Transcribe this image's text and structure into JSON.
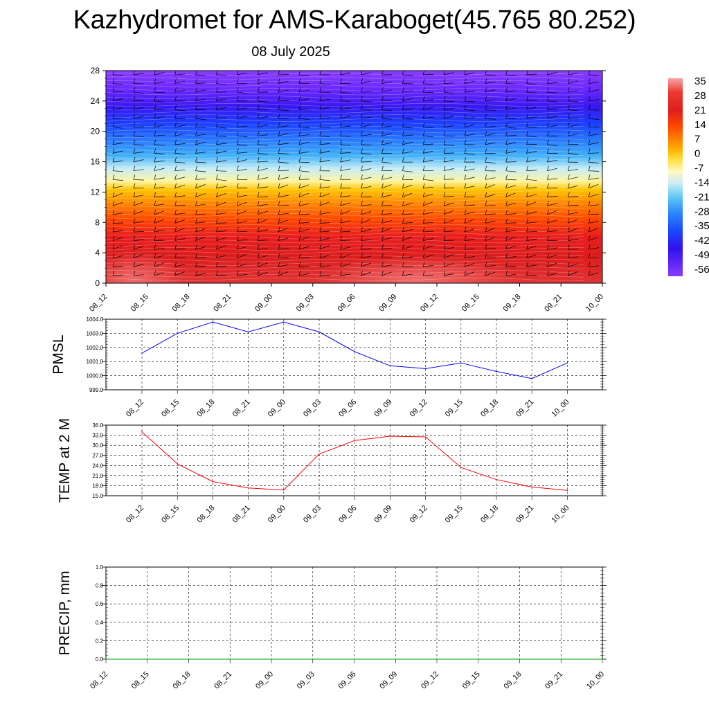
{
  "title": "Kazhydromet for AMS-Karaboget(45.765 80.252)",
  "date": "08 July 2025",
  "chart_data": [
    {
      "type": "heatmap",
      "y_ticks": [
        "0",
        "4",
        "8",
        "12",
        "16",
        "20",
        "24",
        "28"
      ],
      "ylim": [
        0,
        28
      ],
      "x_ticks": [
        "08_12",
        "08_15",
        "08_18",
        "08_21",
        "09_00",
        "09_03",
        "09_06",
        "09_09",
        "09_12",
        "09_15",
        "09_18",
        "09_21",
        "10_00"
      ],
      "colorbar": {
        "labels": [
          "35",
          "28",
          "21",
          "14",
          "7",
          "0",
          "-7",
          "-14",
          "-21",
          "-28",
          "-35",
          "-42",
          "-49",
          "-56"
        ],
        "colors": [
          "#f4a0a0",
          "#ee3c32",
          "#dc1e1e",
          "#ff4400",
          "#ff9a00",
          "#ffd000",
          "#fff59a",
          "#dff2f4",
          "#60ccf4",
          "#2090ff",
          "#1c46ff",
          "#3010ee",
          "#6428ff",
          "#8a3cff"
        ]
      },
      "wind_barbs": true
    },
    {
      "type": "line",
      "ylabel": "PMSL",
      "y_ticks": [
        "999.0",
        "1000.0",
        "1001.0",
        "1002.0",
        "1003.0",
        "1004.0"
      ],
      "ylim": [
        999,
        1004
      ],
      "x": [
        "08_12",
        "08_15",
        "08_18",
        "08_21",
        "09_00",
        "09_03",
        "09_06",
        "09_09",
        "09_12",
        "09_15",
        "09_18",
        "09_21",
        "10_00"
      ],
      "series": [
        {
          "values": [
            1001.6,
            1003.0,
            1003.8,
            1003.1,
            1003.8,
            1003.1,
            1001.7,
            1000.7,
            1000.5,
            1000.9,
            1000.3,
            999.8,
            1000.9
          ],
          "color": "#0000ff"
        }
      ],
      "grid": true
    },
    {
      "type": "line",
      "ylabel": "TEMP at 2 M",
      "y_ticks": [
        "15.0",
        "18.0",
        "21.0",
        "24.0",
        "27.0",
        "30.0",
        "33.0",
        "36.0"
      ],
      "ylim": [
        15,
        36
      ],
      "x": [
        "08_12",
        "08_15",
        "08_18",
        "08_21",
        "09_00",
        "09_03",
        "09_06",
        "09_09",
        "09_12",
        "09_15",
        "09_18",
        "09_21",
        "10_00"
      ],
      "series": [
        {
          "values": [
            34.0,
            24.5,
            19.2,
            17.3,
            16.7,
            27.4,
            31.4,
            32.7,
            32.5,
            23.4,
            19.8,
            17.6,
            16.6
          ],
          "color": "#ff0000"
        }
      ],
      "grid": true
    },
    {
      "type": "line",
      "ylabel": "PRECIP, mm",
      "y_ticks": [
        "0.0",
        "0.2",
        "0.4",
        "0.6",
        "0.8",
        "1.0"
      ],
      "ylim": [
        0,
        1
      ],
      "x_ticks": [
        "08_12",
        "08_15",
        "08_18",
        "08_21",
        "09_00",
        "09_03",
        "09_06",
        "09_09",
        "09_12",
        "09_15",
        "09_18",
        "09_21",
        "10_00"
      ],
      "series": [
        {
          "values": [
            0,
            0,
            0,
            0,
            0,
            0,
            0,
            0,
            0,
            0,
            0,
            0,
            0
          ],
          "color": "#00a000"
        }
      ],
      "grid": true
    }
  ]
}
